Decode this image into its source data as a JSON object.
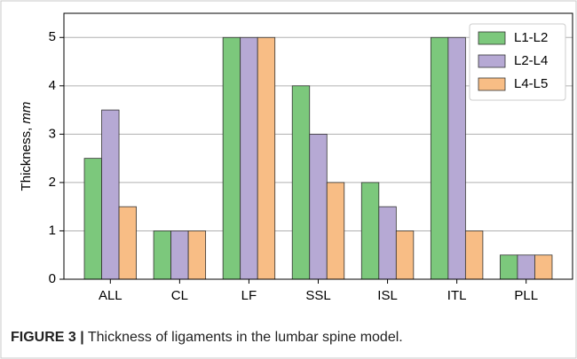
{
  "chart_data": {
    "type": "bar",
    "ylabel": "Thickness,",
    "ylabel_unit": "mm",
    "caption_label": "FIGURE 3 |",
    "caption": "Thickness of ligaments in the lumbar spine model.",
    "categories": [
      "ALL",
      "CL",
      "LF",
      "SSL",
      "ISL",
      "ITL",
      "PLL"
    ],
    "series": [
      {
        "name": "L1-L2",
        "color": "#7cc87c",
        "values": [
          2.5,
          1,
          5,
          4,
          2,
          5,
          0.5
        ]
      },
      {
        "name": "L2-L4",
        "color": "#b6a9d4",
        "values": [
          3.5,
          1,
          5,
          3,
          1.5,
          5,
          0.5
        ]
      },
      {
        "name": "L4-L5",
        "color": "#f8bd85",
        "values": [
          1.5,
          1,
          5,
          2,
          1,
          1,
          0.5
        ]
      }
    ],
    "ylim": [
      0,
      5.5
    ],
    "yticks": [
      0,
      1,
      2,
      3,
      4,
      5
    ],
    "grid": true,
    "legend": "upper right"
  }
}
